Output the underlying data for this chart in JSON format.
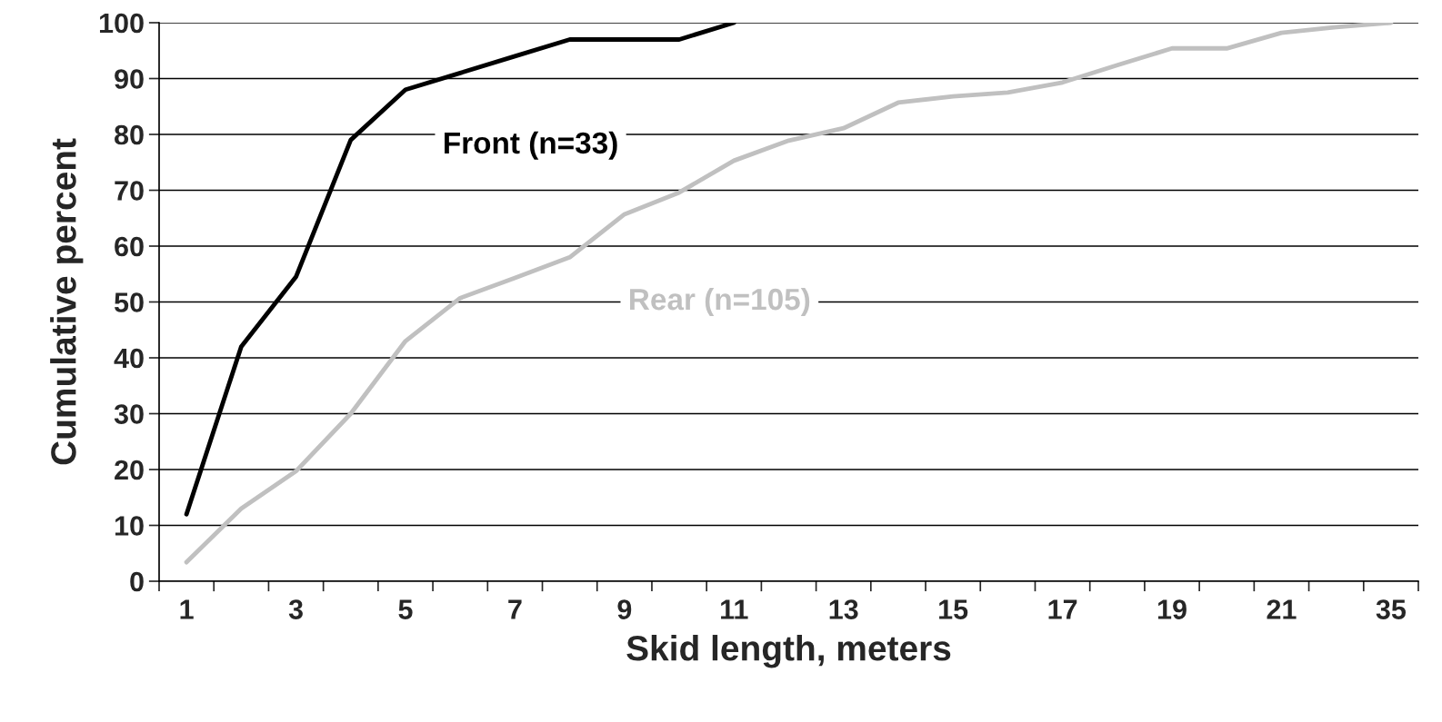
{
  "chart_data": {
    "type": "line",
    "xlabel": "Skid length, meters",
    "ylabel": "Cumulative percent",
    "categories": [
      "1",
      null,
      "3",
      null,
      "5",
      null,
      "7",
      null,
      "9",
      null,
      "11",
      null,
      "13",
      null,
      "15",
      null,
      "17",
      null,
      "19",
      null,
      "21",
      null,
      "35"
    ],
    "series": [
      {
        "name": "Front (n=33)",
        "color": "#000000",
        "values": [
          12,
          42,
          54.5,
          79,
          88,
          91,
          94,
          97,
          97,
          97,
          100,
          null,
          null,
          null,
          null,
          null,
          null,
          null,
          null,
          null,
          null,
          null,
          null
        ]
      },
      {
        "name": "Rear (n=105)",
        "color": "#c0c0c0",
        "values": [
          3.4,
          13,
          19.7,
          30,
          43,
          50.7,
          54.3,
          58,
          65.7,
          69.6,
          75.3,
          78.9,
          81.1,
          85.7,
          86.8,
          87.5,
          89.3,
          92.4,
          95.4,
          95.4,
          98.2,
          99.2,
          100
        ]
      }
    ],
    "ylim": [
      0,
      100
    ],
    "yticks": [
      0,
      10,
      20,
      30,
      40,
      50,
      60,
      70,
      80,
      90,
      100
    ],
    "grid": "y",
    "marker": "none",
    "line_style": "solid"
  }
}
